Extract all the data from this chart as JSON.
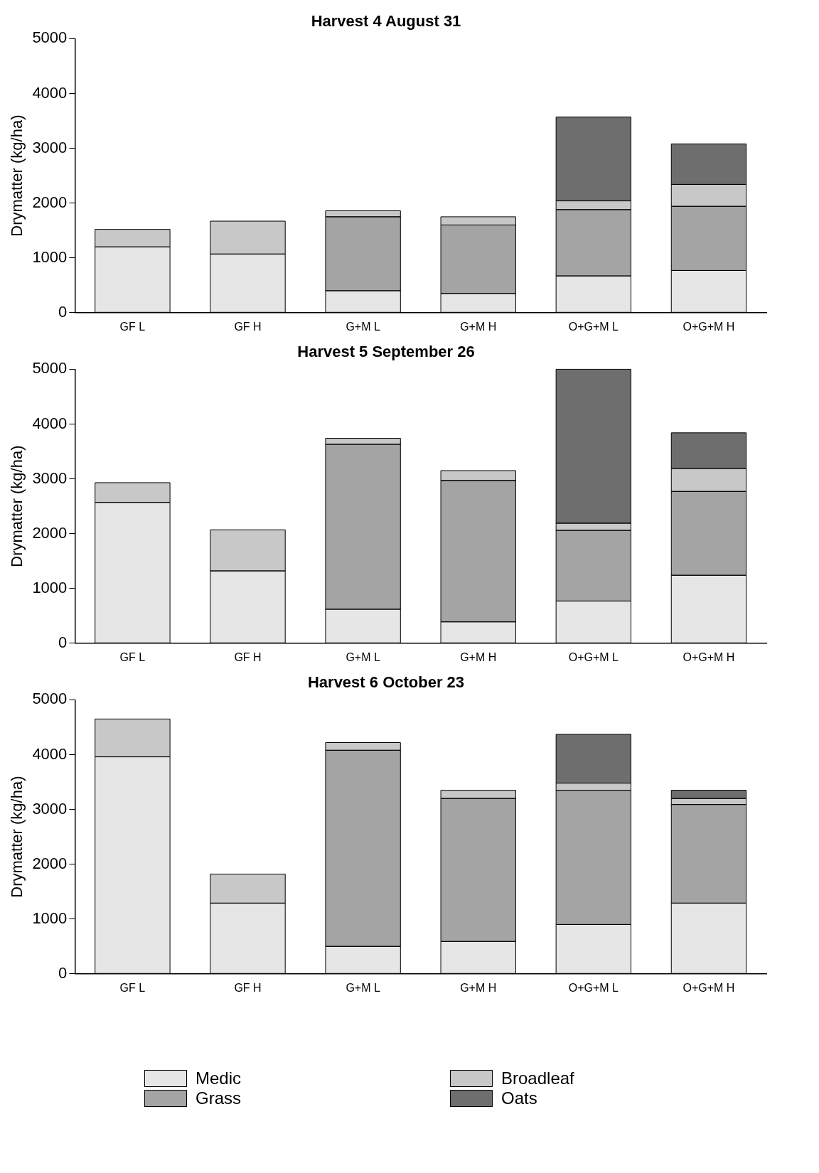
{
  "chart_data": [
    {
      "type": "bar",
      "title": "Harvest 4 August 31",
      "ylabel": "Drymatter (kg/ha)",
      "categories": [
        "GF L",
        "GF H",
        "G+M L",
        "G+M H",
        "O+G+M L",
        "O+G+M H"
      ],
      "stacked": true,
      "ylim": [
        0,
        5000
      ],
      "yticks": [
        0,
        1000,
        2000,
        3000,
        4000,
        5000
      ],
      "grid": false,
      "series": [
        {
          "color": "#e6e6e6",
          "values": [
            1200,
            1070,
            400,
            350,
            670,
            770
          ]
        },
        {
          "color": "#a4a4a4",
          "values": [
            0,
            0,
            1350,
            1250,
            1210,
            1170
          ]
        },
        {
          "color": "#c8c8c8",
          "values": [
            320,
            600,
            110,
            150,
            160,
            400
          ]
        },
        {
          "color": "#6e6e6e",
          "values": [
            0,
            0,
            0,
            0,
            1530,
            740
          ]
        }
      ]
    },
    {
      "type": "bar",
      "title": "Harvest 5 September 26",
      "ylabel": "Drymatter (kg/ha)",
      "categories": [
        "GF L",
        "GF H",
        "G+M L",
        "G+M H",
        "O+G+M L",
        "O+G+M H"
      ],
      "stacked": true,
      "ylim": [
        0,
        5000
      ],
      "yticks": [
        0,
        1000,
        2000,
        3000,
        4000,
        5000
      ],
      "grid": false,
      "series": [
        {
          "color": "#e6e6e6",
          "values": [
            2570,
            1320,
            620,
            390,
            770,
            1240
          ]
        },
        {
          "color": "#a4a4a4",
          "values": [
            0,
            0,
            3010,
            2580,
            1290,
            1530
          ]
        },
        {
          "color": "#c8c8c8",
          "values": [
            360,
            750,
            110,
            180,
            130,
            420
          ]
        },
        {
          "color": "#6e6e6e",
          "values": [
            0,
            0,
            0,
            0,
            2810,
            650
          ]
        }
      ]
    },
    {
      "type": "bar",
      "title": "Harvest 6 October 23",
      "ylabel": "Drymatter (kg/ha)",
      "categories": [
        "GF L",
        "GF H",
        "G+M L",
        "G+M H",
        "O+G+M L",
        "O+G+M H"
      ],
      "stacked": true,
      "ylim": [
        0,
        5000
      ],
      "yticks": [
        0,
        1000,
        2000,
        3000,
        4000,
        5000
      ],
      "grid": false,
      "legend": "bottom",
      "series": [
        {
          "name": "Medic",
          "color": "#e6e6e6",
          "values": [
            3960,
            1290,
            500,
            590,
            900,
            1290
          ]
        },
        {
          "name": "Grass",
          "color": "#a4a4a4",
          "values": [
            0,
            0,
            3580,
            2610,
            2450,
            1800
          ]
        },
        {
          "name": "Broadleaf",
          "color": "#c8c8c8",
          "values": [
            690,
            530,
            140,
            150,
            130,
            110
          ]
        },
        {
          "name": "Oats",
          "color": "#6e6e6e",
          "values": [
            0,
            0,
            0,
            0,
            890,
            150
          ]
        }
      ]
    }
  ]
}
